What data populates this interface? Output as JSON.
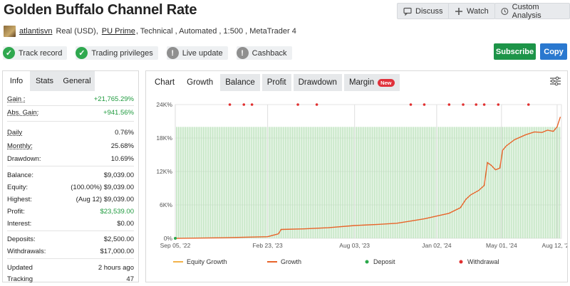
{
  "header": {
    "title": "Golden Buffalo Channel Rate",
    "discuss_label": "Discuss",
    "watch_label": "Watch",
    "custom_label": "Custom Analysis"
  },
  "subheader": {
    "username": "atlantisvn",
    "currency": "Real (USD),",
    "broker": "PU Prime",
    "details": ", Technical , Automated , 1:500 , MetaTrader 4"
  },
  "badges": [
    {
      "label": "Track record",
      "status": "ok"
    },
    {
      "label": "Trading privileges",
      "status": "ok"
    },
    {
      "label": "Live update",
      "status": "na"
    },
    {
      "label": "Cashback",
      "status": "na"
    }
  ],
  "actions": {
    "subscribe": "Subscribe",
    "copy": "Copy"
  },
  "info_tabs": [
    "Info",
    "Stats",
    "General"
  ],
  "stats": {
    "gain": {
      "label": "Gain :",
      "value": "+21,765.29%"
    },
    "abs_gain": {
      "label": "Abs. Gain:",
      "value": "+941.56%"
    },
    "daily": {
      "label": "Daily",
      "value": "0.76%"
    },
    "monthly": {
      "label": "Monthly:",
      "value": "25.68%"
    },
    "drawdown": {
      "label": "Drawdown:",
      "value": "10.69%"
    },
    "balance": {
      "label": "Balance:",
      "value": "$9,039.00"
    },
    "equity": {
      "label": "Equity:",
      "value": "(100.00%) $9,039.00"
    },
    "highest": {
      "label": "Highest:",
      "value": "(Aug 12) $9,039.00"
    },
    "profit": {
      "label": "Profit:",
      "value": "$23,539.00"
    },
    "interest": {
      "label": "Interest:",
      "value": "$0.00"
    },
    "deposits": {
      "label": "Deposits:",
      "value": "$2,500.00"
    },
    "withdrawals": {
      "label": "Withdrawals:",
      "value": "$17,000.00"
    },
    "updated": {
      "label": "Updated",
      "value": "2 hours ago"
    },
    "tracking": {
      "label": "Tracking",
      "value": "47"
    }
  },
  "chart_tabs": [
    "Chart",
    "Growth",
    "Balance",
    "Profit",
    "Drawdown",
    "Margin"
  ],
  "new_badge": "New",
  "chart_data": {
    "type": "line",
    "ylim": [
      0,
      24000
    ],
    "y_ticks": [
      "0%",
      "6K%",
      "12K%",
      "18K%",
      "24K%"
    ],
    "y_tick_values": [
      0,
      6000,
      12000,
      18000,
      24000
    ],
    "x_ticks": [
      "Sep 05, '22",
      "Feb 23, '23",
      "Aug 03, '23",
      "Jan 02, '24",
      "May 01, '24",
      "Aug 12, '24"
    ],
    "x_range": [
      "2022-09-05",
      "2024-08-20"
    ],
    "legend": [
      "Equity Growth",
      "Growth",
      "Deposit",
      "Withdrawal"
    ],
    "colors": {
      "equity_growth": "#f2b24a",
      "growth": "#e8642a",
      "deposit": "#2aa84a",
      "withdrawal": "#e03030",
      "bars": "#b8e0b8"
    },
    "bar_level": 20000,
    "series": [
      {
        "name": "Growth",
        "x": [
          "2022-09-05",
          "2022-12-01",
          "2023-02-23",
          "2023-03-15",
          "2023-03-20",
          "2023-05-01",
          "2023-06-15",
          "2023-08-03",
          "2023-09-15",
          "2023-10-20",
          "2023-11-15",
          "2023-12-10",
          "2024-01-02",
          "2024-01-25",
          "2024-02-15",
          "2024-02-25",
          "2024-03-05",
          "2024-03-20",
          "2024-03-30",
          "2024-04-05",
          "2024-04-12",
          "2024-04-20",
          "2024-04-28",
          "2024-05-03",
          "2024-05-10",
          "2024-05-25",
          "2024-06-15",
          "2024-07-01",
          "2024-07-15",
          "2024-07-25",
          "2024-08-05",
          "2024-08-12",
          "2024-08-18"
        ],
        "y": [
          0,
          100,
          300,
          800,
          1600,
          1700,
          1900,
          2300,
          2500,
          2700,
          3100,
          3500,
          4000,
          4500,
          5500,
          7000,
          7800,
          8600,
          9500,
          13600,
          13100,
          12300,
          12600,
          15800,
          16600,
          17700,
          18600,
          19100,
          19000,
          19400,
          19200,
          20000,
          21800
        ]
      }
    ],
    "withdrawals": [
      "2022-12-15",
      "2023-01-10",
      "2023-01-25",
      "2023-04-20",
      "2023-05-25",
      "2023-11-15",
      "2023-12-10",
      "2024-01-25",
      "2024-02-20",
      "2024-03-15",
      "2024-03-30",
      "2024-04-25",
      "2024-06-20"
    ],
    "deposits": [
      "2022-09-05"
    ]
  }
}
